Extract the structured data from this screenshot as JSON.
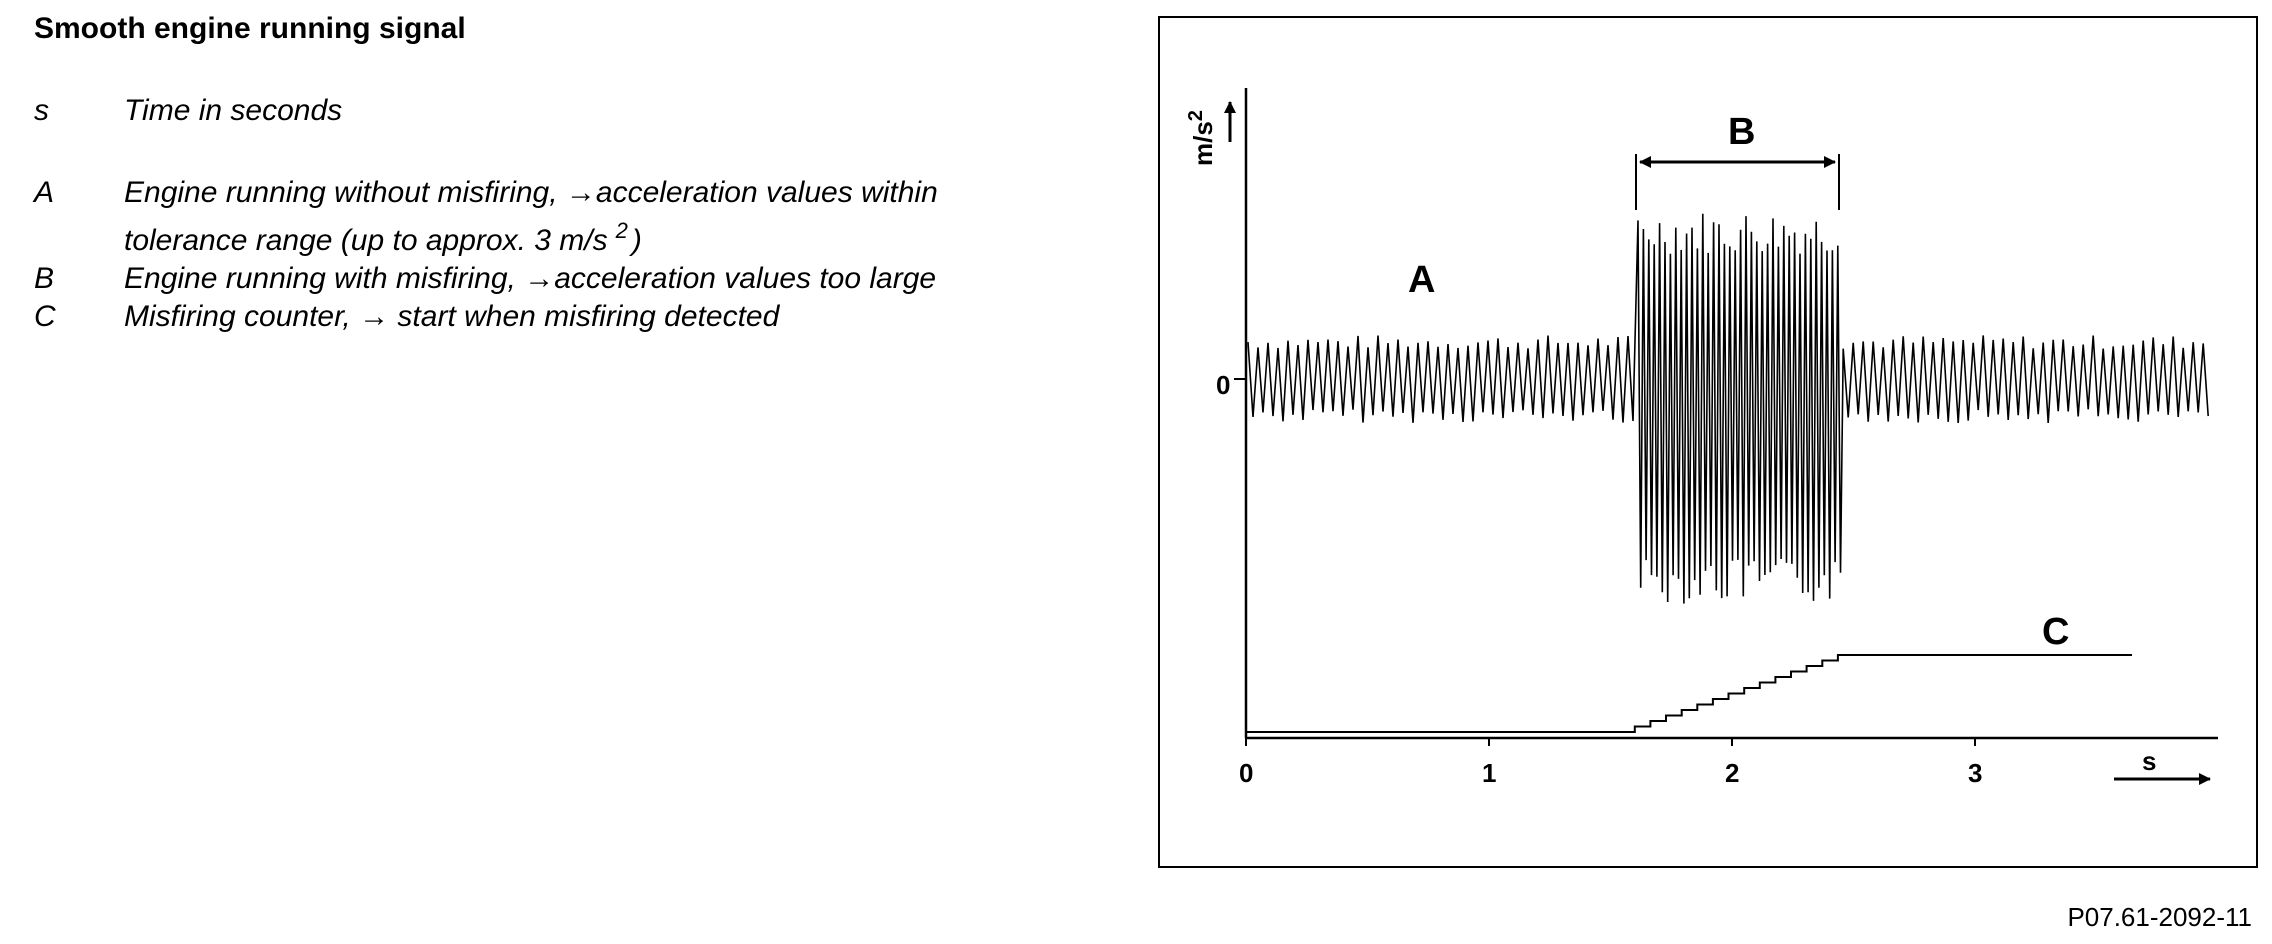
{
  "legend": {
    "title": "Smooth engine running signal",
    "items": [
      {
        "key": "s",
        "text": "Time in seconds"
      },
      {
        "key": "A",
        "text": "Engine running without misfiring, →acceleration values within",
        "text2": "tolerance range (up to approx. 3 m/s",
        "sup": "2",
        "text3": ")"
      },
      {
        "key": "B",
        "text": "Engine running with misfiring, →acceleration values too large"
      },
      {
        "key": "C",
        "text": "Misfiring counter, → start when misfiring detected"
      }
    ]
  },
  "diagram": {
    "y_axis_label": "m/s",
    "y_axis_label_sup": "2",
    "y_zero_label": "0",
    "x_tick_labels": [
      "0",
      "1",
      "2",
      "3"
    ],
    "x_axis_label": "s",
    "region_labels": {
      "a": "A",
      "b": "B",
      "c": "C"
    },
    "misfire_interval_s": [
      1.6,
      2.5
    ],
    "x_range_s": [
      0,
      4
    ]
  },
  "figure_id": "P07.61-2092-11"
}
